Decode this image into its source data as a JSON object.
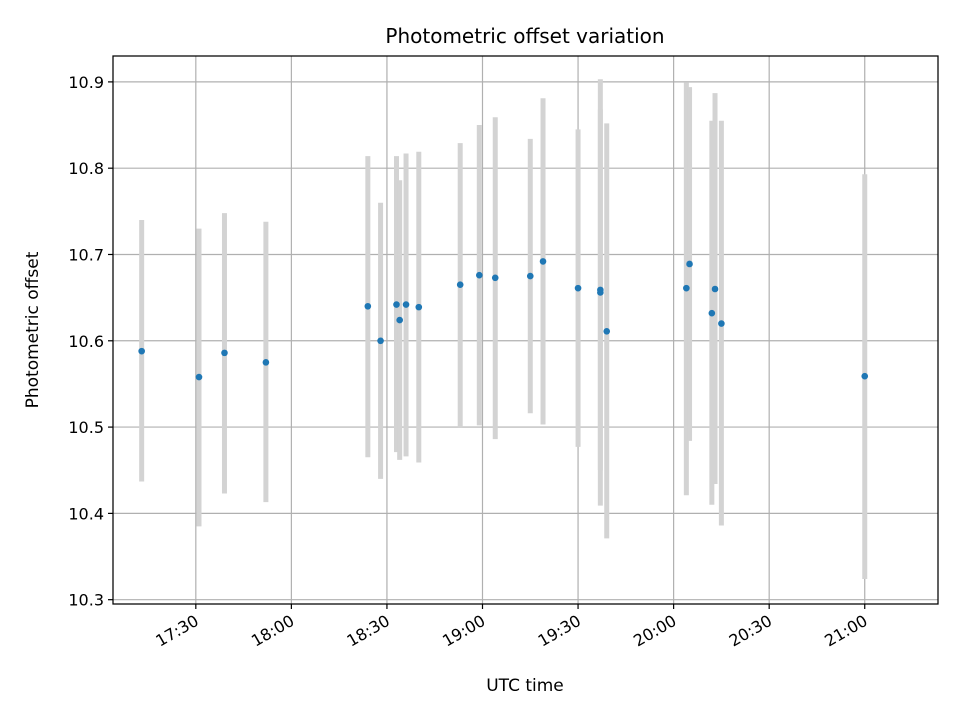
{
  "chart_data": {
    "type": "scatter",
    "title": "Photometric offset variation",
    "xlabel": "UTC time",
    "ylabel": "Photometric offset",
    "x_unit": "UTC clock time (HH:MM)",
    "xlim": [
      "17:04",
      "21:23"
    ],
    "ylim": [
      10.295,
      10.93
    ],
    "x_ticks": [
      "17:30",
      "18:00",
      "18:30",
      "19:00",
      "19:30",
      "20:00",
      "20:30",
      "21:00"
    ],
    "y_ticks": [
      10.3,
      10.4,
      10.5,
      10.6,
      10.7,
      10.8,
      10.9
    ],
    "y_tick_labels": [
      "10.3",
      "10.4",
      "10.5",
      "10.6",
      "10.7",
      "10.8",
      "10.9"
    ],
    "grid": true,
    "point_color": "#1f77b4",
    "errorbar_color": "#d3d3d3",
    "points": [
      {
        "x": "17:13",
        "y": 10.588,
        "ylow": 10.437,
        "yhigh": 10.74
      },
      {
        "x": "17:31",
        "y": 10.558,
        "ylow": 10.385,
        "yhigh": 10.73
      },
      {
        "x": "17:39",
        "y": 10.586,
        "ylow": 10.423,
        "yhigh": 10.748
      },
      {
        "x": "17:52",
        "y": 10.575,
        "ylow": 10.413,
        "yhigh": 10.738
      },
      {
        "x": "18:24",
        "y": 10.64,
        "ylow": 10.465,
        "yhigh": 10.814
      },
      {
        "x": "18:28",
        "y": 10.6,
        "ylow": 10.44,
        "yhigh": 10.76
      },
      {
        "x": "18:33",
        "y": 10.642,
        "ylow": 10.471,
        "yhigh": 10.814
      },
      {
        "x": "18:34",
        "y": 10.624,
        "ylow": 10.462,
        "yhigh": 10.786
      },
      {
        "x": "18:36",
        "y": 10.642,
        "ylow": 10.466,
        "yhigh": 10.817
      },
      {
        "x": "18:40",
        "y": 10.639,
        "ylow": 10.459,
        "yhigh": 10.819
      },
      {
        "x": "18:53",
        "y": 10.665,
        "ylow": 10.5,
        "yhigh": 10.829
      },
      {
        "x": "18:59",
        "y": 10.676,
        "ylow": 10.502,
        "yhigh": 10.85
      },
      {
        "x": "19:04",
        "y": 10.673,
        "ylow": 10.486,
        "yhigh": 10.859
      },
      {
        "x": "19:15",
        "y": 10.675,
        "ylow": 10.516,
        "yhigh": 10.834
      },
      {
        "x": "19:19",
        "y": 10.692,
        "ylow": 10.503,
        "yhigh": 10.881
      },
      {
        "x": "19:30",
        "y": 10.661,
        "ylow": 10.477,
        "yhigh": 10.845
      },
      {
        "x": "19:37",
        "y": 10.659,
        "ylow": 10.45,
        "yhigh": 10.868
      },
      {
        "x": "19:37",
        "y": 10.656,
        "ylow": 10.409,
        "yhigh": 10.903
      },
      {
        "x": "19:39",
        "y": 10.611,
        "ylow": 10.371,
        "yhigh": 10.852
      },
      {
        "x": "20:04",
        "y": 10.661,
        "ylow": 10.421,
        "yhigh": 10.899
      },
      {
        "x": "20:05",
        "y": 10.689,
        "ylow": 10.484,
        "yhigh": 10.894
      },
      {
        "x": "20:12",
        "y": 10.632,
        "ylow": 10.41,
        "yhigh": 10.855
      },
      {
        "x": "20:13",
        "y": 10.66,
        "ylow": 10.434,
        "yhigh": 10.887
      },
      {
        "x": "20:15",
        "y": 10.62,
        "ylow": 10.386,
        "yhigh": 10.855
      },
      {
        "x": "21:00",
        "y": 10.559,
        "ylow": 10.324,
        "yhigh": 10.793
      }
    ]
  }
}
